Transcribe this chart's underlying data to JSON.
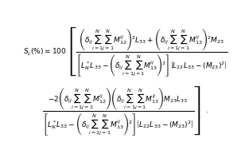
{
  "background_color": "#ffffff",
  "text_color": "#000000",
  "fontsize": 6.5,
  "fig_width": 3.08,
  "fig_height": 1.93,
  "dpi": 100
}
